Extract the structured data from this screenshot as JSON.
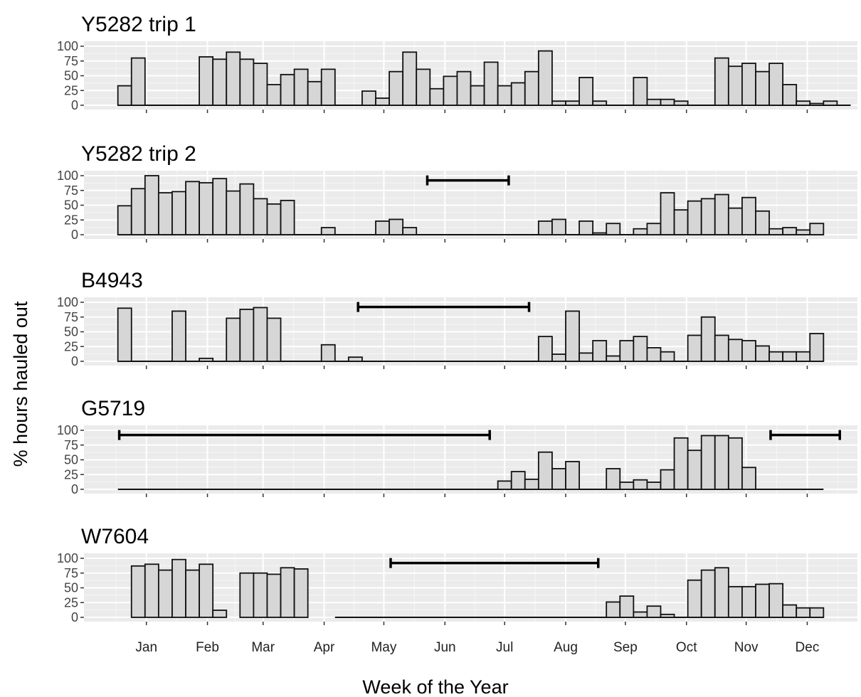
{
  "chart_data": {
    "type": "bar",
    "xlabel": "Week of the Year",
    "ylabel": "% hours hauled out",
    "x_range": [
      -2,
      55
    ],
    "ylim": [
      0,
      100
    ],
    "y_ticks": [
      0,
      25,
      50,
      75,
      100
    ],
    "x_ticks": [
      {
        "label": "Jan",
        "week": 2.6
      },
      {
        "label": "Feb",
        "week": 7.1
      },
      {
        "label": "Mar",
        "week": 11.2
      },
      {
        "label": "Apr",
        "week": 15.7
      },
      {
        "label": "May",
        "week": 20.1
      },
      {
        "label": "Jun",
        "week": 24.6
      },
      {
        "label": "Jul",
        "week": 29.0
      },
      {
        "label": "Aug",
        "week": 33.5
      },
      {
        "label": "Sep",
        "week": 37.9
      },
      {
        "label": "Oct",
        "week": 42.4
      },
      {
        "label": "Nov",
        "week": 46.8
      },
      {
        "label": "Dec",
        "week": 51.3
      }
    ],
    "grid": true,
    "panels": [
      {
        "title": "Y5282 trip 1",
        "week_start": 1,
        "values": [
          33,
          80,
          0,
          0,
          0,
          0,
          82,
          78,
          90,
          78,
          71,
          35,
          52,
          61,
          40,
          61,
          0,
          0,
          24,
          12,
          57,
          90,
          61,
          28,
          49,
          57,
          33,
          73,
          33,
          38,
          57,
          92,
          7,
          7,
          47,
          7,
          0,
          0,
          47,
          10,
          10,
          7,
          0,
          0,
          80,
          66,
          71,
          57,
          71,
          35,
          7,
          3,
          7,
          0
        ],
        "gaps": []
      },
      {
        "title": "Y5282 trip 2",
        "week_start": 1,
        "values": [
          49,
          78,
          100,
          71,
          73,
          90,
          88,
          95,
          74,
          86,
          61,
          52,
          58,
          0,
          0,
          12,
          0,
          0,
          0,
          23,
          26,
          12,
          0,
          0,
          0,
          0,
          0,
          0,
          0,
          0,
          0,
          23,
          26,
          0,
          23,
          3,
          19,
          0,
          10,
          19,
          71,
          42,
          57,
          61,
          68,
          45,
          63,
          40,
          10,
          12,
          8,
          19
        ],
        "gaps": [
          [
            23.3,
            29.3
          ]
        ]
      },
      {
        "title": "B4943",
        "week_start": 1,
        "values": [
          90,
          0,
          0,
          0,
          85,
          0,
          5,
          0,
          73,
          88,
          91,
          73,
          0,
          0,
          0,
          28,
          0,
          7,
          0,
          0,
          0,
          0,
          0,
          0,
          0,
          0,
          0,
          0,
          0,
          0,
          0,
          42,
          12,
          85,
          14,
          35,
          9,
          35,
          42,
          23,
          16,
          0,
          44,
          75,
          44,
          37,
          35,
          26,
          16,
          16,
          16,
          47
        ],
        "gaps": [
          [
            18.2,
            30.8
          ]
        ]
      },
      {
        "title": "G5719",
        "week_start": 1,
        "values": [
          0,
          0,
          0,
          0,
          0,
          0,
          0,
          0,
          0,
          0,
          0,
          0,
          0,
          0,
          0,
          0,
          0,
          0,
          0,
          0,
          0,
          0,
          0,
          0,
          0,
          0,
          0,
          0,
          14,
          30,
          17,
          63,
          35,
          47,
          0,
          0,
          35,
          12,
          16,
          12,
          33,
          87,
          66,
          91,
          91,
          87,
          37,
          0,
          0,
          0,
          0,
          0
        ],
        "gaps": [
          [
            0.6,
            27.9
          ],
          [
            48.6,
            53.7
          ]
        ]
      },
      {
        "title": "W7604",
        "week_start": 2,
        "values": [
          87,
          90,
          80,
          98,
          80,
          90,
          12,
          0,
          75,
          75,
          73,
          84,
          82,
          0,
          0,
          0,
          0,
          0,
          0,
          0,
          0,
          0,
          0,
          0,
          0,
          0,
          0,
          0,
          0,
          0,
          0,
          0,
          0,
          0,
          0,
          26,
          36,
          9,
          19,
          5,
          0,
          63,
          80,
          84,
          52,
          52,
          56,
          57,
          21,
          16,
          16
        ],
        "gaps": [
          [
            20.6,
            35.9
          ]
        ],
        "baseline_from": 17
      }
    ]
  }
}
